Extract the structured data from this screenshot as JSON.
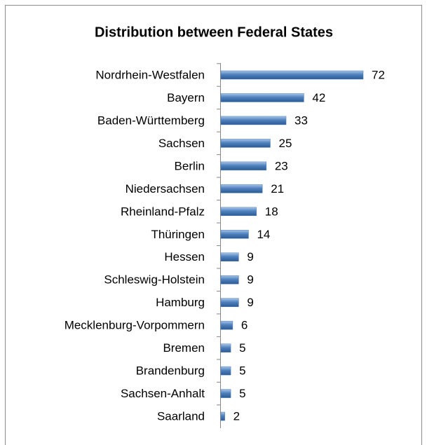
{
  "chart_data": {
    "type": "bar",
    "orientation": "horizontal",
    "title": "Distribution between Federal States",
    "categories": [
      "Nordrhein-Westfalen",
      "Bayern",
      "Baden-Württemberg",
      "Sachsen",
      "Berlin",
      "Niedersachsen",
      "Rheinland-Pfalz",
      "Thüringen",
      "Hessen",
      "Schleswig-Holstein",
      "Hamburg",
      "Mecklenburg-Vorpommern",
      "Bremen",
      "Brandenburg",
      "Sachsen-Anhalt",
      "Saarland"
    ],
    "values": [
      72,
      42,
      33,
      25,
      23,
      21,
      18,
      14,
      9,
      9,
      9,
      6,
      5,
      5,
      5,
      2
    ],
    "color": "#4f81bd"
  }
}
